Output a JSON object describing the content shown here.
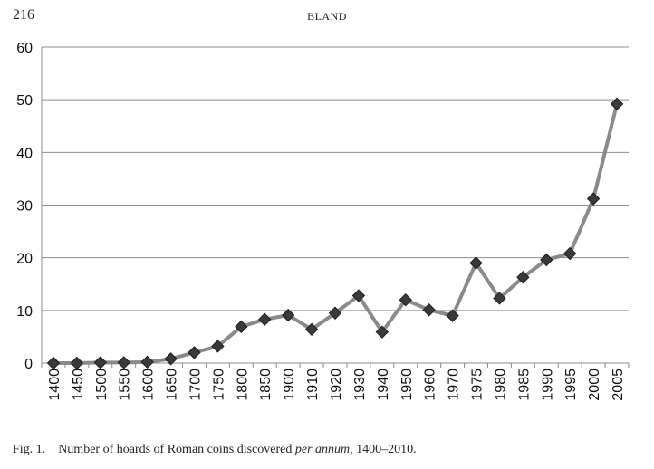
{
  "header": {
    "page_number": "216",
    "running_head": "BLAND"
  },
  "caption": {
    "label": "Fig. 1.",
    "text_before": "Number of hoards of Roman coins discovered ",
    "text_italic": "per annum",
    "text_after": ", 1400–2010."
  },
  "chart_data": {
    "type": "line",
    "title": "",
    "xlabel": "",
    "ylabel": "",
    "categories": [
      "1400",
      "1450",
      "1500",
      "1550",
      "1600",
      "1650",
      "1700",
      "1750",
      "1800",
      "1850",
      "1900",
      "1910",
      "1920",
      "1930",
      "1940",
      "1950",
      "1960",
      "1970",
      "1975",
      "1980",
      "1985",
      "1990",
      "1995",
      "2000",
      "2005"
    ],
    "series": [
      {
        "values": [
          0,
          0,
          0.1,
          0.1,
          0.2,
          0.8,
          2,
          3.2,
          6.9,
          8.3,
          9.1,
          6.4,
          9.5,
          12.8,
          5.9,
          12,
          10.1,
          9,
          19,
          12.3,
          16.3,
          19.6,
          20.8,
          31.2,
          49.2
        ],
        "line_color": "#8a8a8a",
        "marker": "diamond",
        "marker_color": "#3a3a3a"
      }
    ],
    "ylim": [
      0,
      60
    ],
    "yticks": [
      0,
      10,
      20,
      30,
      40,
      50,
      60
    ],
    "grid": "horizontal",
    "legend": "none"
  }
}
